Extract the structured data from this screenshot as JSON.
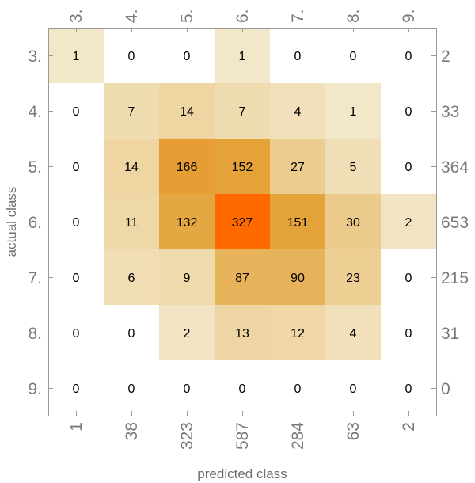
{
  "chart_data": {
    "type": "heatmap",
    "title": "",
    "xlabel": "predicted class",
    "ylabel": "actual class",
    "row_labels": [
      "3.",
      "4.",
      "5.",
      "6.",
      "7.",
      "8.",
      "9."
    ],
    "col_labels": [
      "3.",
      "4.",
      "5.",
      "6.",
      "7.",
      "8.",
      "9."
    ],
    "values": [
      [
        1,
        0,
        0,
        1,
        0,
        0,
        0
      ],
      [
        0,
        7,
        14,
        7,
        4,
        1,
        0
      ],
      [
        0,
        14,
        166,
        152,
        27,
        5,
        0
      ],
      [
        0,
        11,
        132,
        327,
        151,
        30,
        2
      ],
      [
        0,
        6,
        9,
        87,
        90,
        23,
        0
      ],
      [
        0,
        0,
        2,
        13,
        12,
        4,
        0
      ],
      [
        0,
        0,
        0,
        0,
        0,
        0,
        0
      ]
    ],
    "row_totals": [
      "2",
      "33",
      "364",
      "653",
      "215",
      "31",
      "0"
    ],
    "col_totals": [
      "1",
      "38",
      "323",
      "587",
      "284",
      "63",
      "2"
    ],
    "colors": {
      "low": "#f4efd9",
      "mid": "#e3a43a",
      "high": "#ff6a00",
      "frame": "#9a9a9a",
      "zero": "#ffffff"
    },
    "grid": false
  }
}
